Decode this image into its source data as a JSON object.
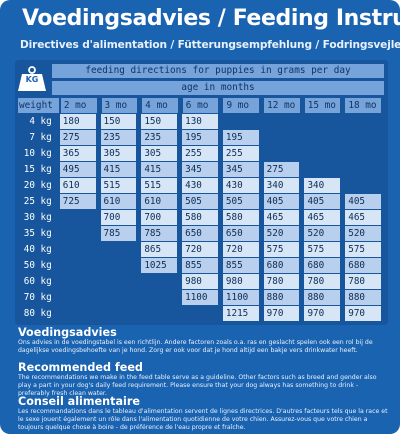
{
  "header": {
    "title": "Voedingsadvies / Feeding Instruction",
    "subtitle": "Directives d'alimentation / Fütterungsempfehlung / Fodringsvejledning / Föring"
  },
  "kg_icon": {
    "label": "KG",
    "icon": "weight-icon"
  },
  "table": {
    "header_main": "feeding directions for puppies in grams per day",
    "header_sub": "age in months",
    "columns": [
      "weight",
      "2 mo",
      "3 mo",
      "4 mo",
      "6 mo",
      "9 mo",
      "12 mo",
      "15 mo",
      "18 mo"
    ],
    "rows": [
      [
        "4 kg",
        "180",
        "150",
        "150",
        "130",
        "",
        "",
        "",
        ""
      ],
      [
        "7 kg",
        "275",
        "235",
        "235",
        "195",
        "195",
        "",
        "",
        ""
      ],
      [
        "10 kg",
        "365",
        "305",
        "305",
        "255",
        "255",
        "",
        "",
        ""
      ],
      [
        "15 kg",
        "495",
        "415",
        "415",
        "345",
        "345",
        "275",
        "",
        ""
      ],
      [
        "20 kg",
        "610",
        "515",
        "515",
        "430",
        "430",
        "340",
        "340",
        ""
      ],
      [
        "25 kg",
        "725",
        "610",
        "610",
        "505",
        "505",
        "405",
        "405",
        "405"
      ],
      [
        "30 kg",
        "",
        "700",
        "700",
        "580",
        "580",
        "465",
        "465",
        "465"
      ],
      [
        "35 kg",
        "",
        "785",
        "785",
        "650",
        "650",
        "520",
        "520",
        "520"
      ],
      [
        "40 kg",
        "",
        "",
        "865",
        "720",
        "720",
        "575",
        "575",
        "575"
      ],
      [
        "50 kg",
        "",
        "",
        "1025",
        "855",
        "855",
        "680",
        "680",
        "680"
      ],
      [
        "60 kg",
        "",
        "",
        "",
        "980",
        "980",
        "780",
        "780",
        "780"
      ],
      [
        "70 kg",
        "",
        "",
        "",
        "1100",
        "1100",
        "880",
        "880",
        "880"
      ],
      [
        "80 kg",
        "",
        "",
        "",
        "",
        "1215",
        "970",
        "970",
        "970"
      ]
    ]
  },
  "sections": [
    {
      "heading": "Voedingsadvies",
      "body": "Ons advies in de voedingstabel is een richtlijn. Andere factoren zoals o.a. ras en geslacht spelen ook een rol bij de dagelijkse voedingsbehoefte van je hond. Zorg er ook voor dat je hond altijd een bakje vers drinkwater heeft."
    },
    {
      "heading": "Recommended feed",
      "body": "The recommendations we make in the feed table serve as a guideline. Other factors such as breed and gender also play a part in your dog's daily feed requirement. Please ensure that your dog always has something to drink - preferably fresh clean water."
    },
    {
      "heading": "Conseil alimentaire",
      "body": "Les recommandations dans le tableau d'alimentation servent de lignes directrices. D'autres facteurs tels que la race et le sexe jouent également un rôle dans l'alimentation quotidienne de votre chien. Assurez-vous que votre chien a toujours quelque chose à boire - de préférence de l'eau propre et fraîche."
    }
  ]
}
